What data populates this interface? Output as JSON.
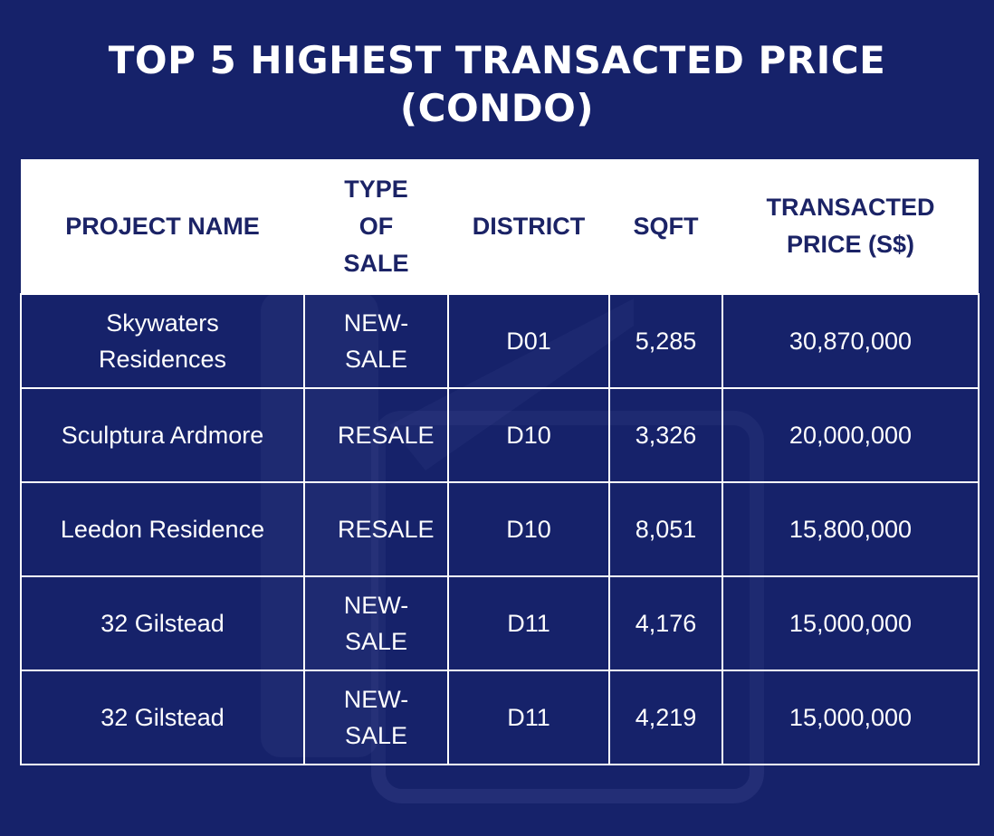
{
  "title_line1": "TOP 5 HIGHEST TRANSACTED PRICE",
  "title_line2": "(CONDO)",
  "headers": {
    "project": "PROJECT NAME",
    "type": "TYPE OF SALE",
    "district": "DISTRICT",
    "sqft": "SQFT",
    "price": "TRANSACTED PRICE (S$)"
  },
  "rows": [
    {
      "project": "Skywaters Residences",
      "type": "NEW-SALE",
      "district": "D01",
      "sqft": "5,285",
      "price": "30,870,000"
    },
    {
      "project": "Sculptura Ardmore",
      "type": "RESALE",
      "district": "D10",
      "sqft": "3,326",
      "price": "20,000,000"
    },
    {
      "project": "Leedon Residence",
      "type": "RESALE",
      "district": "D10",
      "sqft": "8,051",
      "price": "15,800,000"
    },
    {
      "project": "32 Gilstead",
      "type": "NEW-SALE",
      "district": "D11",
      "sqft": "4,176",
      "price": "15,000,000"
    },
    {
      "project": "32 Gilstead",
      "type": "NEW-SALE",
      "district": "D11",
      "sqft": "4,219",
      "price": "15,000,000"
    }
  ],
  "colors": {
    "background": "#16226a",
    "header_text": "#1b2366",
    "header_bg": "#ffffff",
    "cell_text": "#ffffff"
  },
  "chart_data": {
    "type": "table",
    "title": "TOP 5 HIGHEST TRANSACTED PRICE (CONDO)",
    "columns": [
      "PROJECT NAME",
      "TYPE OF SALE",
      "DISTRICT",
      "SQFT",
      "TRANSACTED PRICE (S$)"
    ],
    "rows": [
      [
        "Skywaters Residences",
        "NEW-SALE",
        "D01",
        5285,
        30870000
      ],
      [
        "Sculptura Ardmore",
        "RESALE",
        "D10",
        3326,
        20000000
      ],
      [
        "Leedon Residence",
        "RESALE",
        "D10",
        8051,
        15800000
      ],
      [
        "32 Gilstead",
        "NEW-SALE",
        "D11",
        4176,
        15000000
      ],
      [
        "32 Gilstead",
        "NEW-SALE",
        "D11",
        4219,
        15000000
      ]
    ]
  }
}
